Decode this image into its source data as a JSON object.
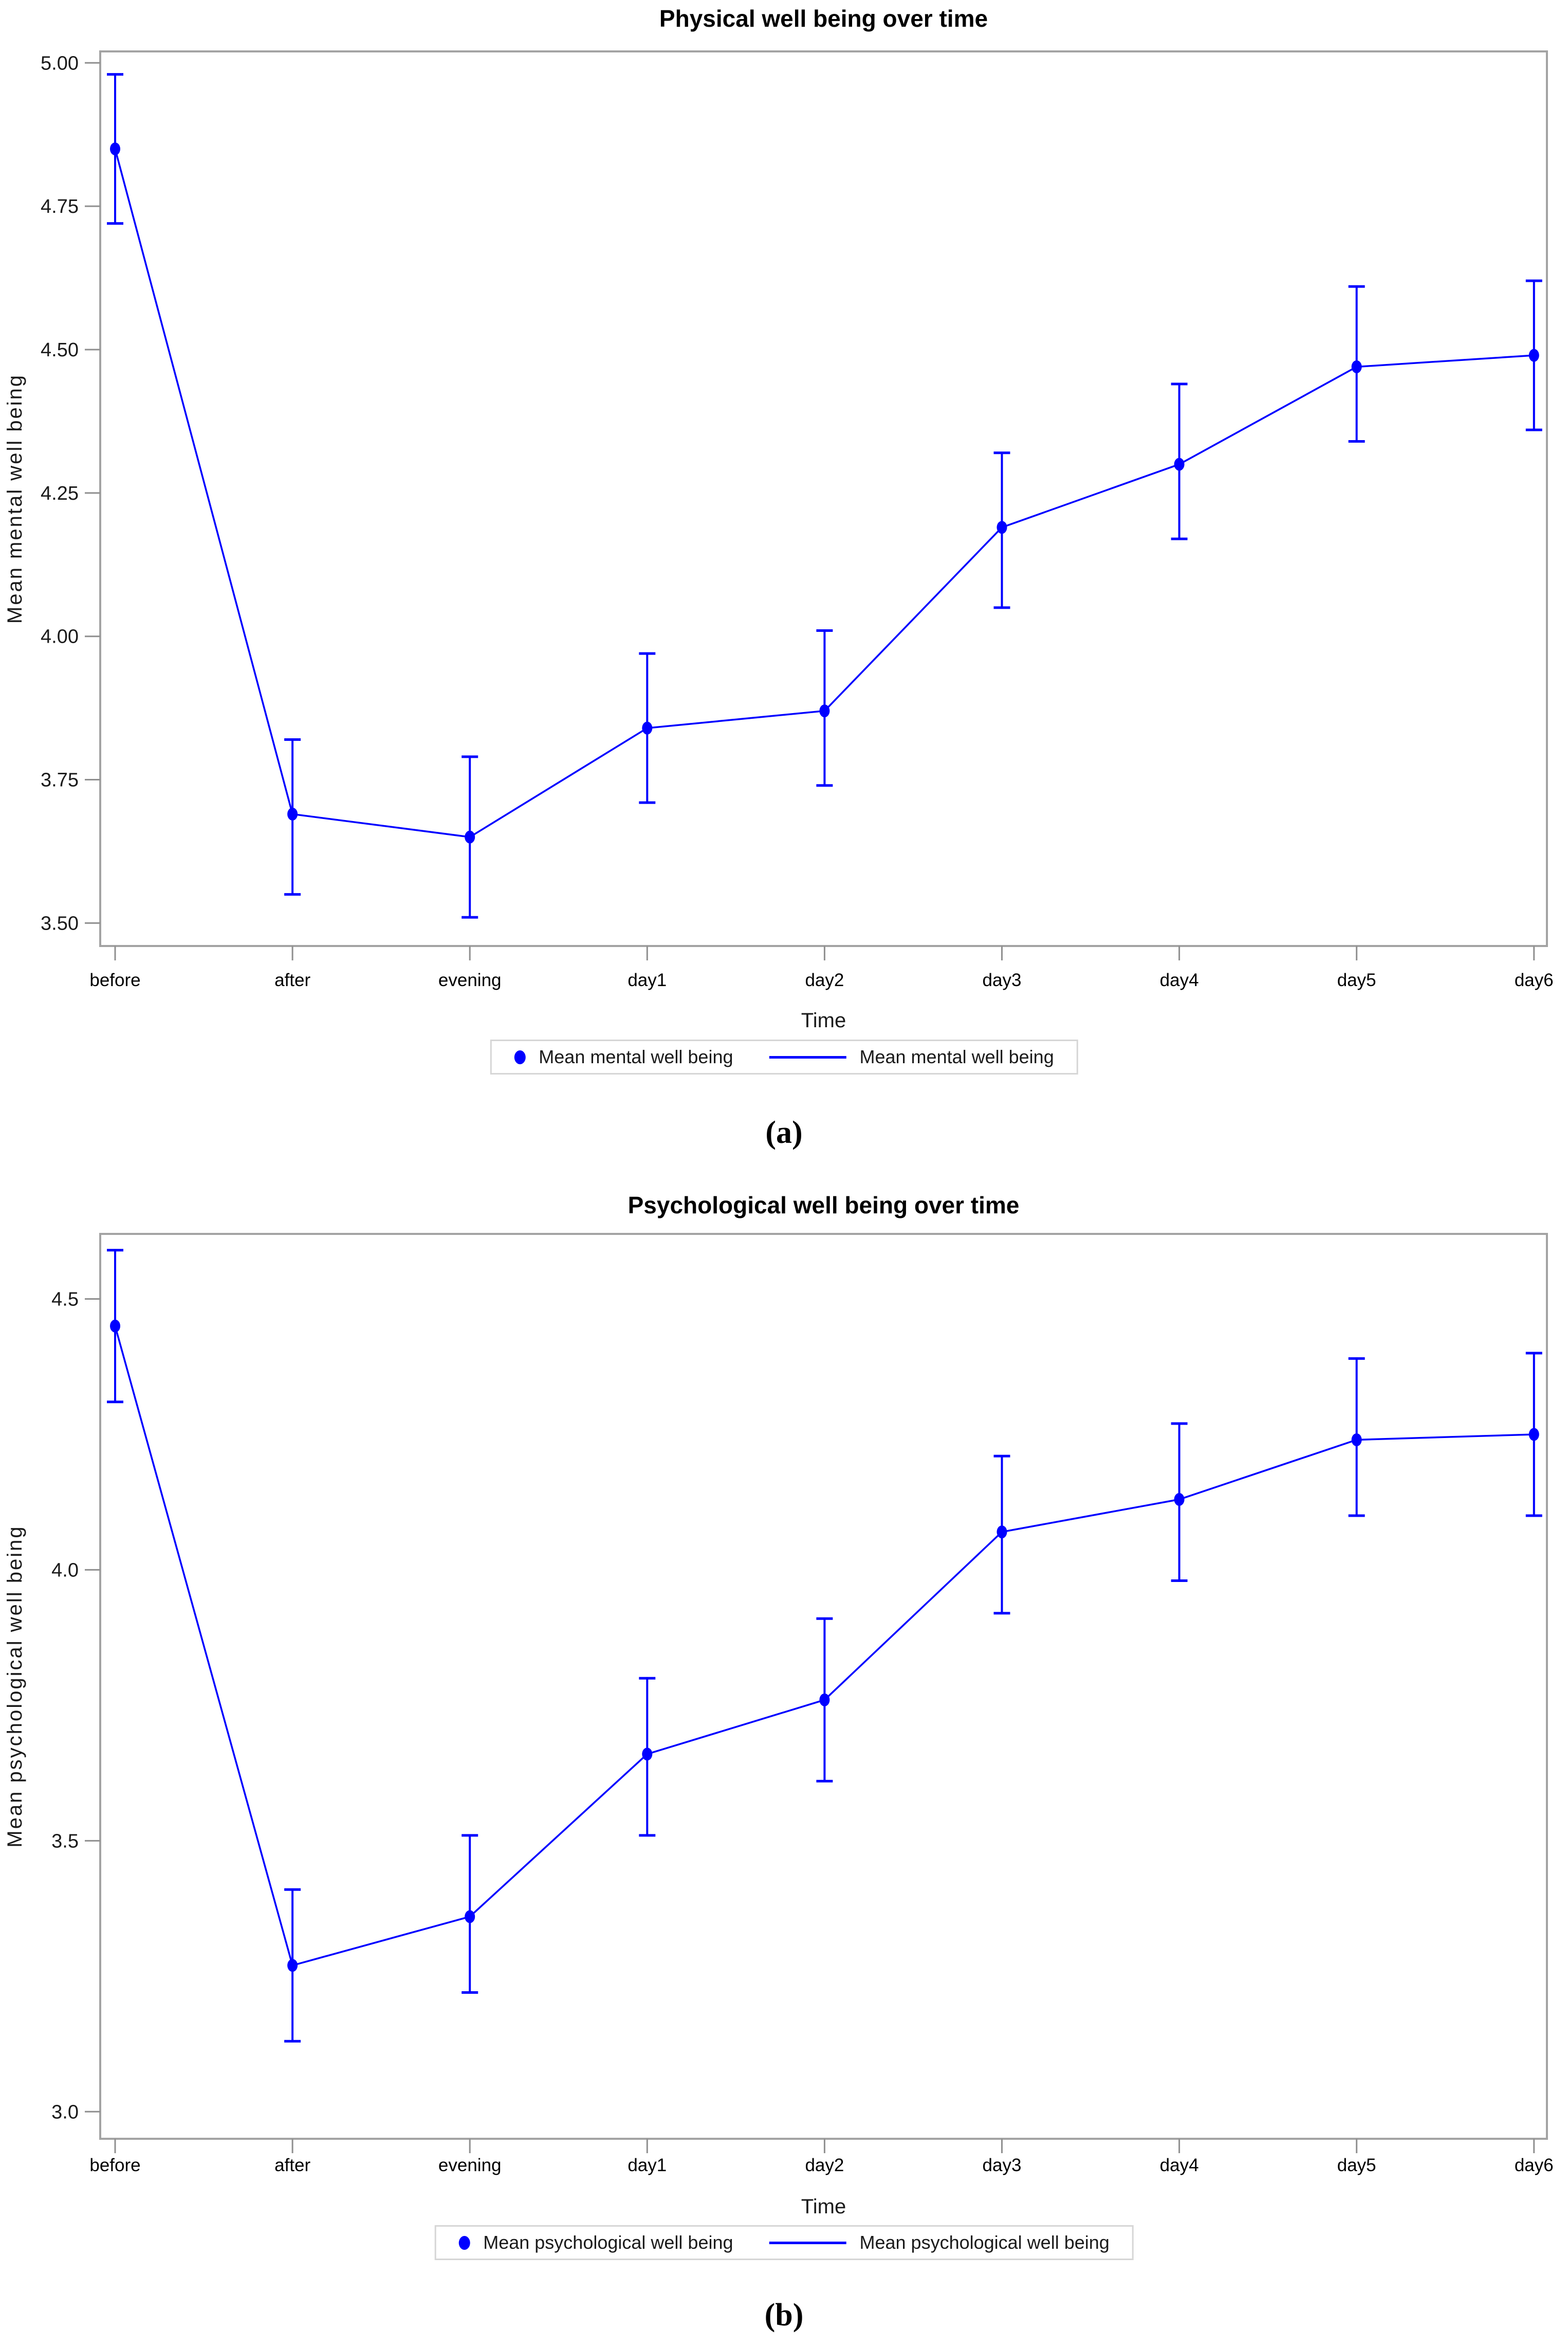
{
  "style": {
    "background": "#ffffff",
    "accent": "#0000ff",
    "frame_color": "#a3a3a3",
    "tick_color": "#8f8f8f",
    "text_color": "#1a1a1a",
    "title_color": "#000000",
    "legend_border": "#d6d6d6"
  },
  "chart_data": [
    {
      "type": "line",
      "title": "Physical well being over time",
      "xlabel": "Time",
      "ylabel": "Mean mental well being",
      "caption": "(a)",
      "grid": false,
      "legend_position": "bottom-center",
      "categories": [
        "before",
        "after",
        "evening",
        "day1",
        "day2",
        "day3",
        "day4",
        "day5",
        "day6"
      ],
      "yticks": [
        5.0,
        4.75,
        4.5,
        4.25,
        4.0,
        3.75,
        3.5
      ],
      "ytick_labels": [
        "5.00",
        "4.75",
        "4.50",
        "4.25",
        "4.00",
        "3.75",
        "3.50"
      ],
      "ylim": [
        3.46,
        5.02
      ],
      "legend": [
        {
          "symbol": "dot",
          "label": "Mean mental well being"
        },
        {
          "symbol": "line",
          "label": "Mean mental well being"
        }
      ],
      "series": [
        {
          "name": "Mean mental well being",
          "color": "#0000ff",
          "values": [
            4.85,
            3.69,
            3.65,
            3.84,
            3.87,
            4.19,
            4.3,
            4.47,
            4.49
          ],
          "ci_low": [
            4.72,
            3.55,
            3.51,
            3.71,
            3.74,
            4.05,
            4.17,
            4.34,
            4.36
          ],
          "ci_high": [
            4.98,
            3.82,
            3.79,
            3.97,
            4.01,
            4.32,
            4.44,
            4.61,
            4.62
          ]
        }
      ]
    },
    {
      "type": "line",
      "title": "Psychological well being over time",
      "xlabel": "Time",
      "ylabel": "Mean psychological well being",
      "caption": "(b)",
      "grid": false,
      "legend_position": "bottom-center",
      "categories": [
        "before",
        "after",
        "evening",
        "day1",
        "day2",
        "day3",
        "day4",
        "day5",
        "day6"
      ],
      "yticks": [
        4.5,
        4.0,
        3.5,
        3.0
      ],
      "ytick_labels": [
        "4.5",
        "4.0",
        "3.5",
        "3.0"
      ],
      "ylim": [
        2.95,
        4.62
      ],
      "legend": [
        {
          "symbol": "dot",
          "label": "Mean psychological well being"
        },
        {
          "symbol": "line",
          "label": "Mean psychological well being"
        }
      ],
      "series": [
        {
          "name": "Mean psychological well being",
          "color": "#0000ff",
          "values": [
            4.45,
            3.27,
            3.36,
            3.66,
            3.76,
            4.07,
            4.13,
            4.24,
            4.25
          ],
          "ci_low": [
            4.31,
            3.13,
            3.22,
            3.51,
            3.61,
            3.92,
            3.98,
            4.1,
            4.1
          ],
          "ci_high": [
            4.59,
            3.41,
            3.51,
            3.8,
            3.91,
            4.21,
            4.27,
            4.39,
            4.4
          ]
        }
      ]
    }
  ]
}
